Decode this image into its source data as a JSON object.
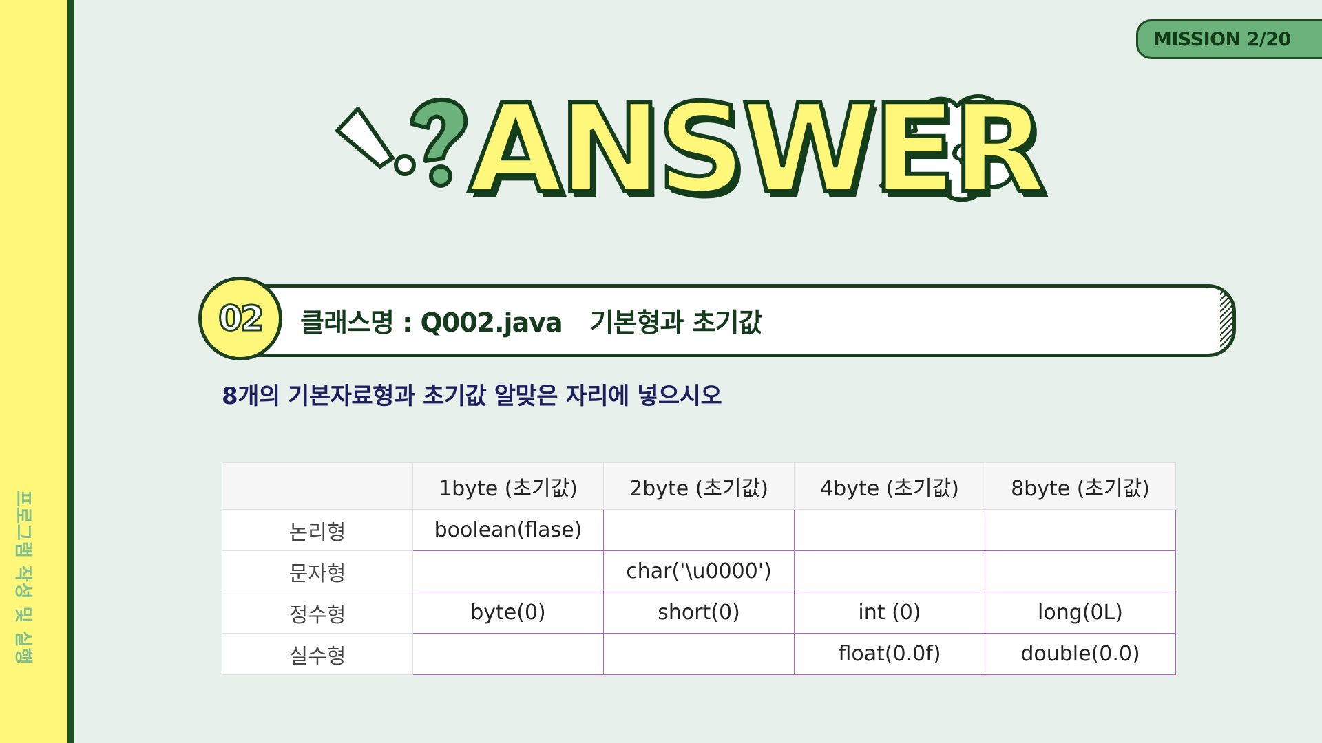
{
  "sidebar": {
    "label": "프로그램 작성 및 실행"
  },
  "mission": {
    "label": "MISSION 2/20"
  },
  "title": {
    "main": "ANSWER",
    "bubble": "Q!!"
  },
  "question": {
    "number": "02",
    "class_label": "클래스명 : Q002.java",
    "topic": "기본형과 초기값"
  },
  "instruction": "8개의 기본자료형과 초기값 알맞은 자리에 넣으시오",
  "table": {
    "headers": [
      "",
      "1byte (초기값)",
      "2byte (초기값)",
      "4byte (초기값)",
      "8byte (초기값)"
    ],
    "rows": [
      {
        "label": "논리형",
        "cells": [
          "boolean(flase)",
          "",
          "",
          ""
        ]
      },
      {
        "label": "문자형",
        "cells": [
          "",
          "char('\\u0000')",
          "",
          ""
        ]
      },
      {
        "label": "정수형",
        "cells": [
          "byte(0)",
          "short(0)",
          "int  (0)",
          "long(0L)"
        ]
      },
      {
        "label": "실수형",
        "cells": [
          "",
          "",
          "float(0.0f)",
          "double(0.0)"
        ]
      }
    ]
  },
  "colors": {
    "sidebar": "#fff77a",
    "dark_green": "#1f4e22",
    "accent_green": "#6bb27d",
    "background": "#e8f0ec",
    "table_border": "#b45fc9"
  },
  "icons": [
    "exclamation-icon",
    "question-mark-icon",
    "speech-bubble-icon"
  ]
}
